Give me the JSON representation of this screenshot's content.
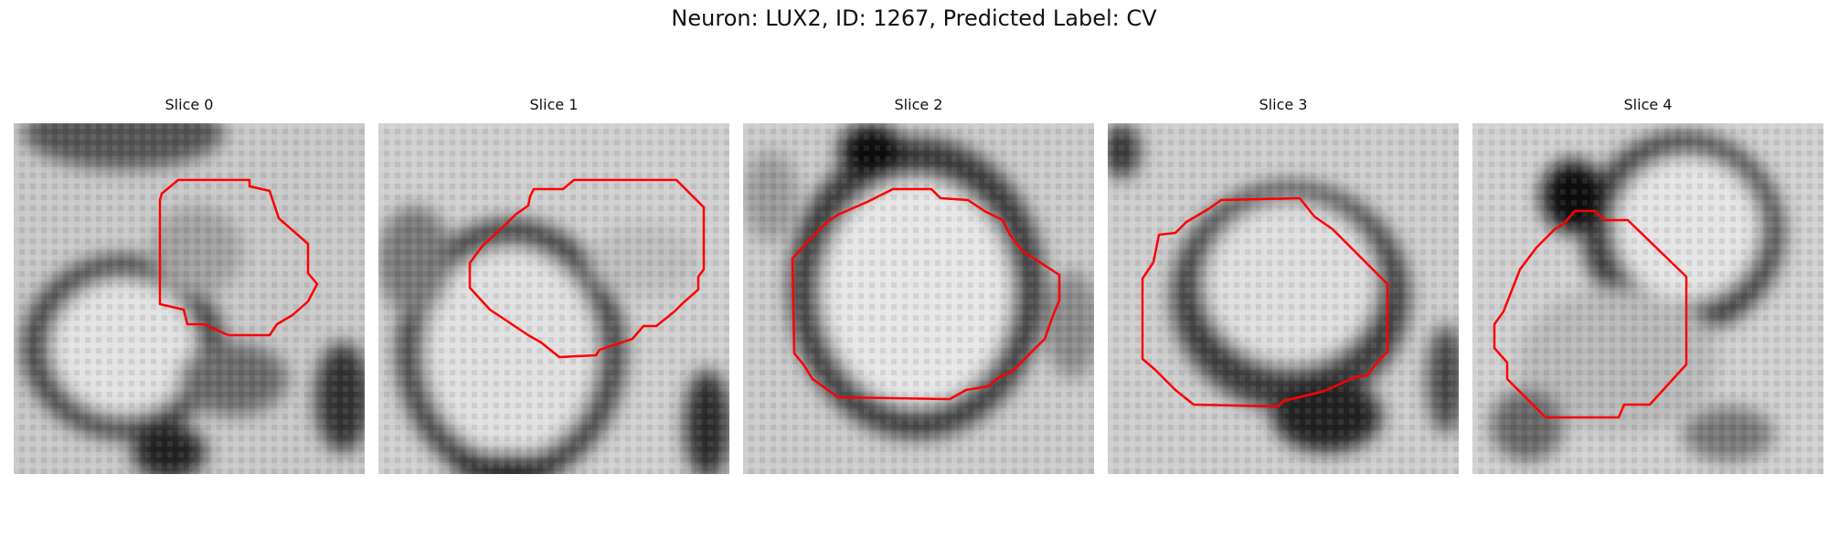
{
  "figure": {
    "title": "Neuron: LUX2, ID: 1267, Predicted Label: CV"
  },
  "colors": {
    "contour": "#ff0000",
    "background": "#ffffff"
  },
  "panels": [
    {
      "title": "Slice 0"
    },
    {
      "title": "Slice 1"
    },
    {
      "title": "Slice 2"
    },
    {
      "title": "Slice 3"
    },
    {
      "title": "Slice 4"
    }
  ]
}
